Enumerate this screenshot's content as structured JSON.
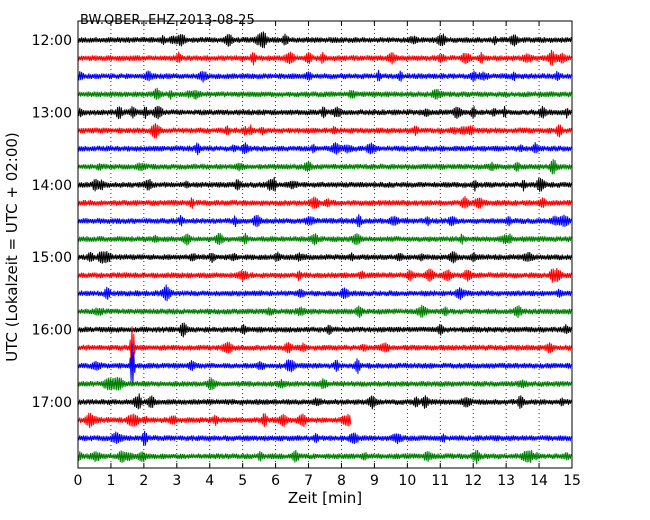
{
  "chart_data": {
    "type": "line",
    "title": "BW.OBER..EHZ 2013-08-25",
    "xlabel": "Zeit  [min]",
    "ylabel": "UTC (Lokalzeit = UTC + 02:00)",
    "xlim": [
      0,
      15
    ],
    "x_ticks": [
      "0",
      "1",
      "2",
      "3",
      "4",
      "5",
      "6",
      "7",
      "8",
      "9",
      "10",
      "11",
      "12",
      "13",
      "14",
      "15"
    ],
    "y_ticks": [
      "12:00",
      "13:00",
      "14:00",
      "15:00",
      "16:00",
      "17:00"
    ],
    "grid": "vertical dotted",
    "colors": [
      "#000000",
      "#ff0000",
      "#0000ff",
      "#008000"
    ],
    "traces": [
      {
        "start": "12:00",
        "color": "#000000",
        "peak": null
      },
      {
        "start": "12:15",
        "color": "#ff0000",
        "peak": null
      },
      {
        "start": "12:30",
        "color": "#0000ff",
        "peak": null
      },
      {
        "start": "12:45",
        "color": "#008000",
        "peak": null
      },
      {
        "start": "13:00",
        "color": "#000000",
        "peak": null
      },
      {
        "start": "13:15",
        "color": "#ff0000",
        "peak": null
      },
      {
        "start": "13:30",
        "color": "#0000ff",
        "peak": null
      },
      {
        "start": "13:45",
        "color": "#008000",
        "peak": null
      },
      {
        "start": "14:00",
        "color": "#000000",
        "peak": null
      },
      {
        "start": "14:15",
        "color": "#ff0000",
        "peak": null
      },
      {
        "start": "14:30",
        "color": "#0000ff",
        "peak": null
      },
      {
        "start": "14:45",
        "color": "#008000",
        "peak": null
      },
      {
        "start": "15:00",
        "color": "#000000",
        "peak": null
      },
      {
        "start": "15:15",
        "color": "#ff0000",
        "peak": null
      },
      {
        "start": "15:30",
        "color": "#0000ff",
        "peak": null
      },
      {
        "start": "15:45",
        "color": "#008000",
        "peak": null
      },
      {
        "start": "16:00",
        "color": "#000000",
        "peak": null
      },
      {
        "start": "16:15",
        "color": "#ff0000",
        "peak": 1.65
      },
      {
        "start": "16:30",
        "color": "#0000ff",
        "peak": 1.65
      },
      {
        "start": "16:45",
        "color": "#008000",
        "peak": null
      },
      {
        "start": "17:00",
        "color": "#000000",
        "peak": null
      },
      {
        "start": "17:15",
        "color": "#ff0000",
        "peak": null,
        "end": 8.3
      },
      {
        "start": "17:30",
        "color": "#0000ff",
        "peak": null
      },
      {
        "start": "17:45",
        "color": "#008000",
        "peak": null
      }
    ]
  }
}
